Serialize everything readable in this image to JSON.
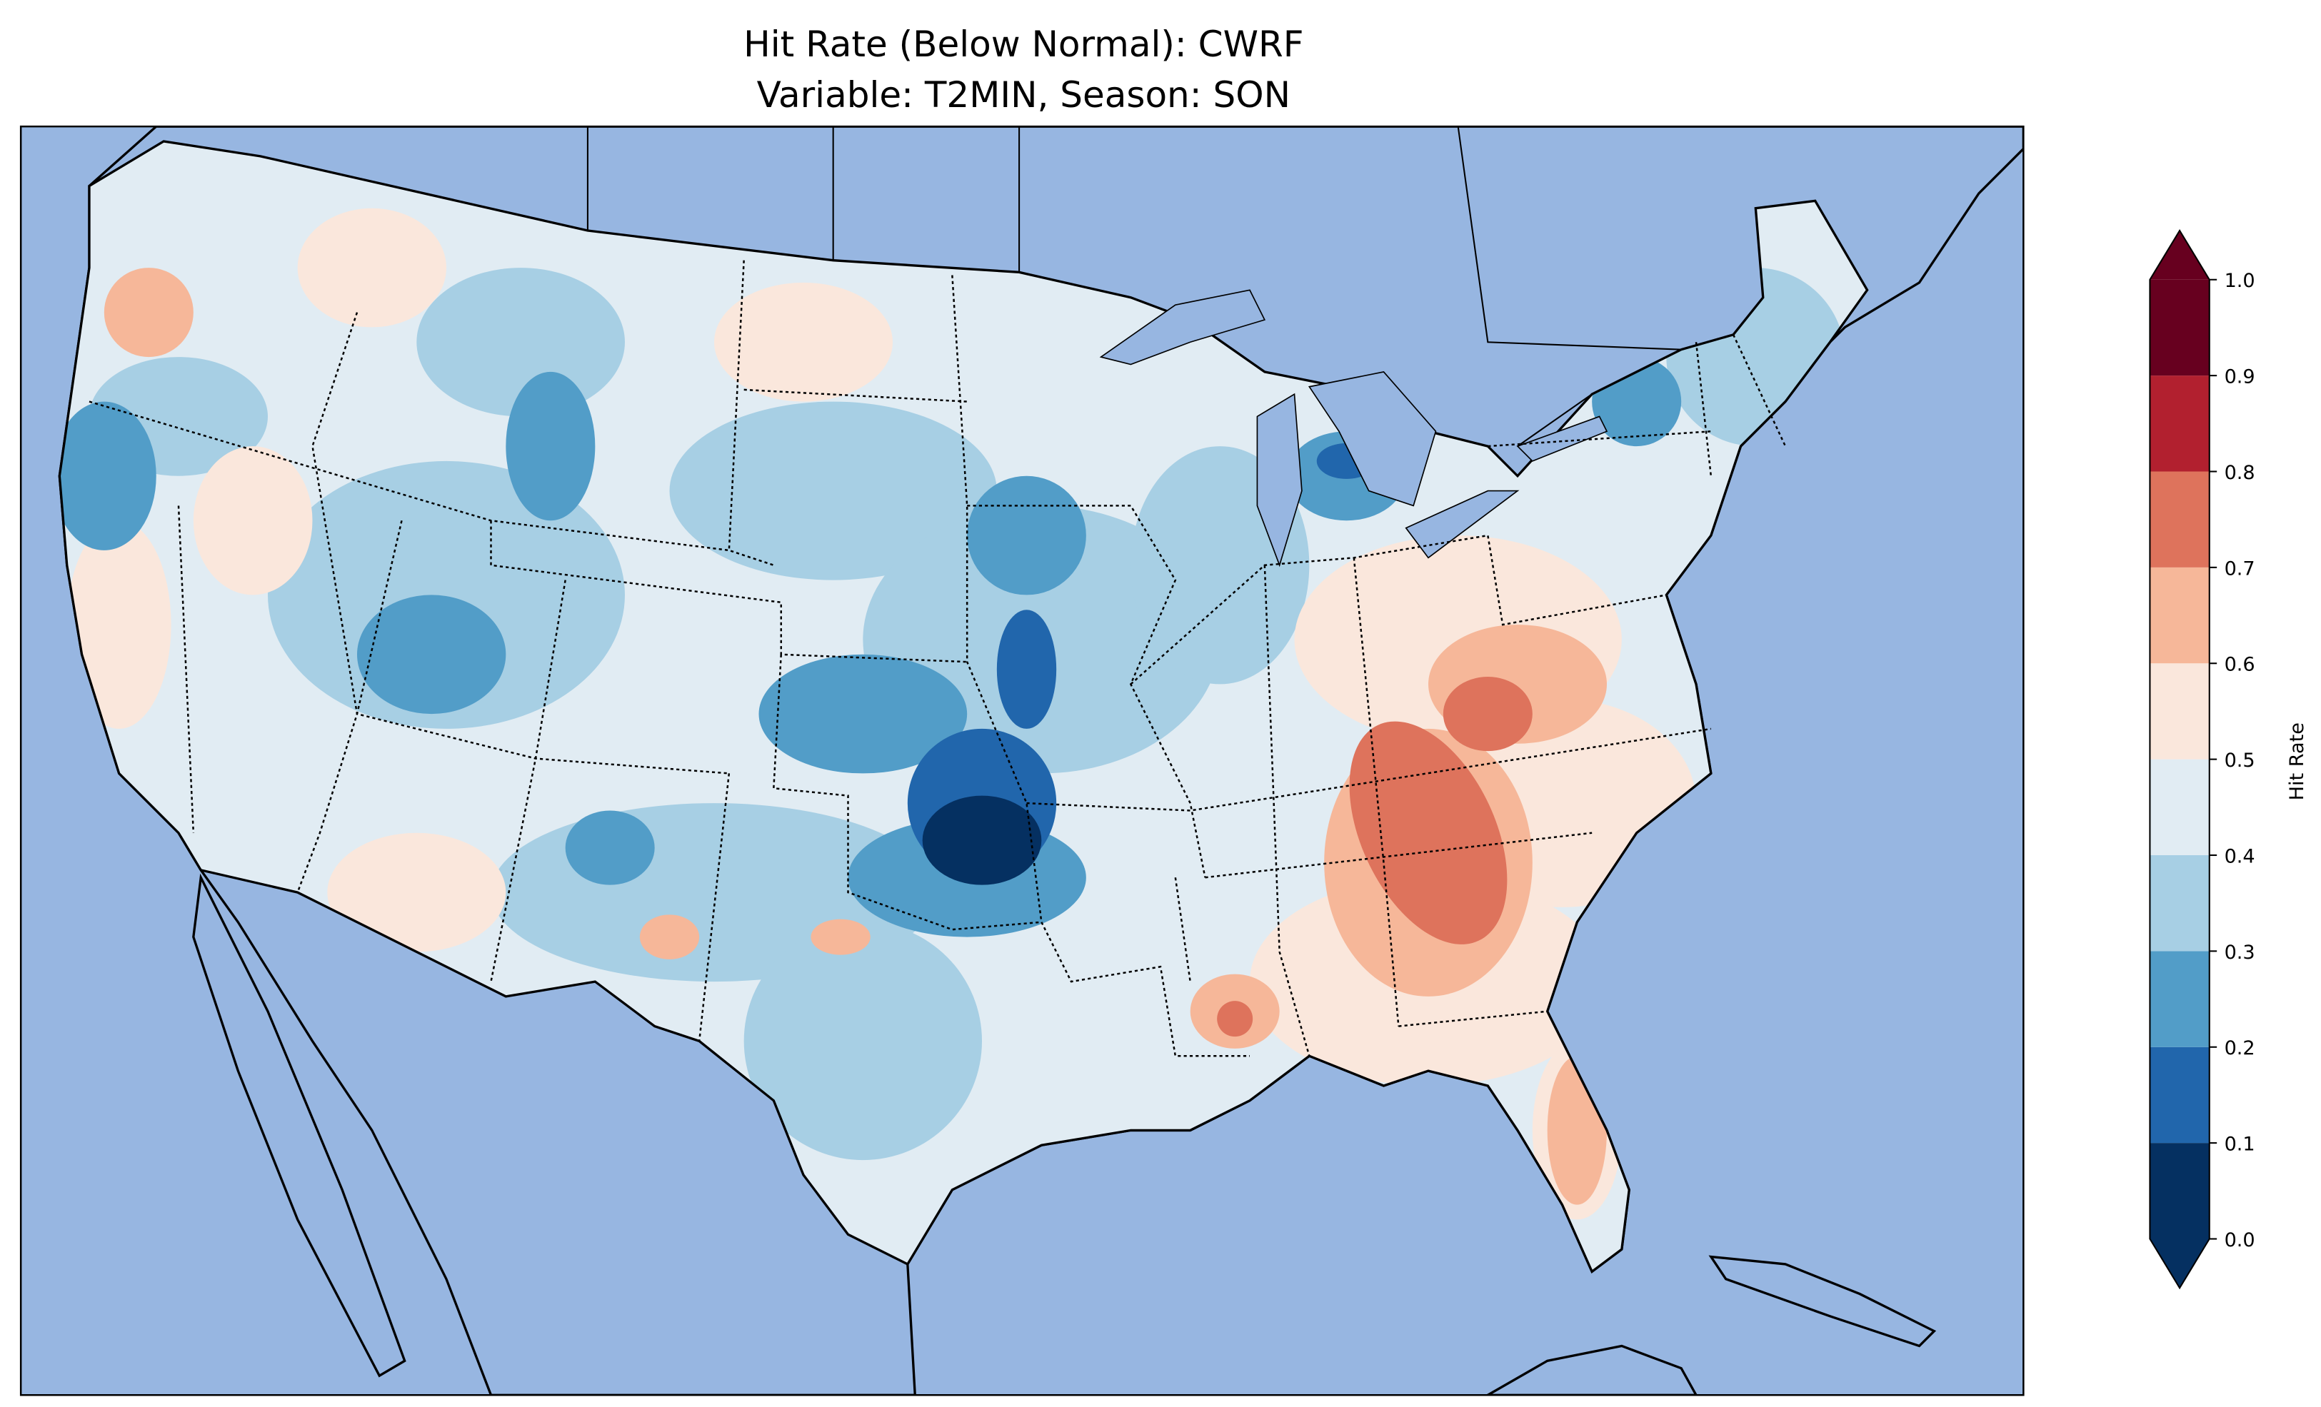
{
  "chart_data": {
    "type": "heatmap",
    "title_line1": "Hit Rate (Below Normal): CWRF",
    "title_line2": "Variable: T2MIN, Season: SON",
    "colorbar": {
      "label": "Hit Rate",
      "levels": [
        0.0,
        0.1,
        0.2,
        0.3,
        0.4,
        0.5,
        0.6,
        0.7,
        0.8,
        0.9,
        1.0
      ],
      "tick_labels": [
        "0.0",
        "0.1",
        "0.2",
        "0.3",
        "0.4",
        "0.5",
        "0.6",
        "0.7",
        "0.8",
        "0.9",
        "1.0"
      ],
      "colors": [
        "#053061",
        "#2166ac",
        "#529dc8",
        "#a7cfe4",
        "#e1ecf3",
        "#fae7dc",
        "#f6b799",
        "#de735c",
        "#b2202f",
        "#67001f"
      ],
      "extend": "both",
      "range": [
        0.0,
        1.0
      ]
    },
    "map": {
      "region": "Contiguous United States",
      "ocean_color": "#97b6e1",
      "land_color": "#efefdb"
    }
  }
}
